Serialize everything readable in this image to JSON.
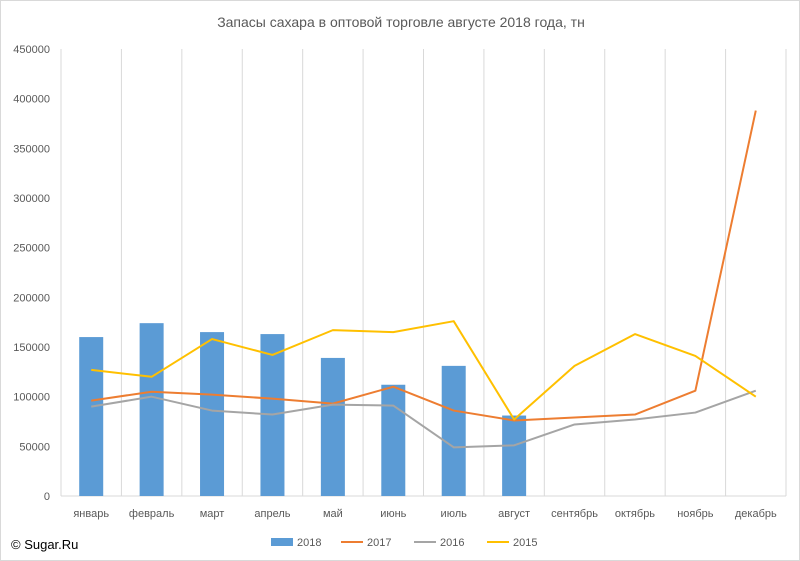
{
  "copyright": "© Sugar.Ru",
  "chart_data": {
    "type": "bar+line",
    "title": "Запасы сахара в оптовой торговле августе 2018 года, тн",
    "categories": [
      "январь",
      "февраль",
      "март",
      "апрель",
      "май",
      "июнь",
      "июль",
      "август",
      "сентябрь",
      "октябрь",
      "ноябрь",
      "декабрь"
    ],
    "ylim": [
      0,
      450000
    ],
    "yticks": [
      "0",
      "50000",
      "100000",
      "150000",
      "200000",
      "250000",
      "300000",
      "350000",
      "400000",
      "450000"
    ],
    "grid": "vertical",
    "legend_position": "bottom",
    "series": [
      {
        "name": "2018",
        "kind": "bar",
        "color": "#5b9bd5",
        "values": [
          160000,
          174000,
          165000,
          163000,
          139000,
          112000,
          131000,
          81000,
          null,
          null,
          null,
          null
        ]
      },
      {
        "name": "2017",
        "kind": "line",
        "color": "#ed7d31",
        "values": [
          96000,
          105000,
          102000,
          98000,
          93000,
          110000,
          86000,
          76000,
          79000,
          82000,
          106000,
          388000
        ]
      },
      {
        "name": "2016",
        "kind": "line",
        "color": "#a5a5a5",
        "values": [
          90000,
          100000,
          86000,
          82000,
          92000,
          91000,
          49000,
          51000,
          72000,
          77000,
          84000,
          106000
        ]
      },
      {
        "name": "2015",
        "kind": "line",
        "color": "#ffc000",
        "values": [
          127000,
          120000,
          158000,
          142000,
          167000,
          165000,
          176000,
          77000,
          131000,
          163000,
          141000,
          100000
        ]
      }
    ]
  }
}
